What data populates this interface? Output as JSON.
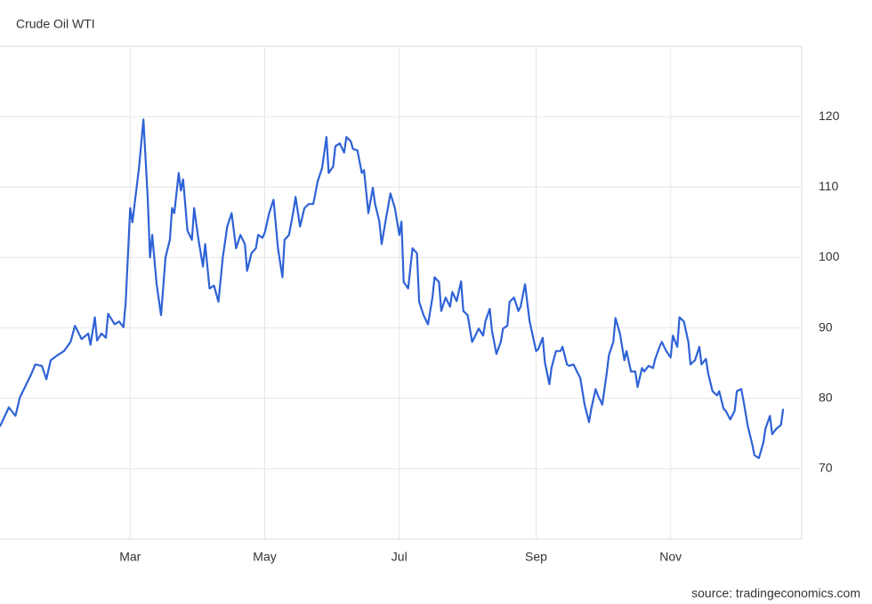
{
  "chart_data": {
    "type": "line",
    "title": "Crude Oil WTI",
    "source": "source: tradingeconomics.com",
    "xlim": [
      0,
      363
    ],
    "xticks": [
      {
        "value": 59,
        "label": "Mar"
      },
      {
        "value": 120,
        "label": "May"
      },
      {
        "value": 181,
        "label": "Jul"
      },
      {
        "value": 243,
        "label": "Sep"
      },
      {
        "value": 304,
        "label": "Nov"
      }
    ],
    "ylim": [
      60,
      130
    ],
    "yticks": [
      70,
      80,
      90,
      100,
      110,
      120
    ],
    "grid": true,
    "series": [
      {
        "color": "#2e62d6",
        "x": [
          0,
          4,
          7,
          9,
          11,
          14,
          16,
          19,
          21,
          23,
          26,
          29,
          32,
          34,
          37,
          40,
          41,
          43,
          44,
          46,
          48,
          49,
          52,
          54,
          56,
          57,
          59,
          60,
          63,
          65,
          67,
          68,
          69,
          71,
          73,
          75,
          77,
          78,
          79,
          81,
          82,
          83,
          85,
          87,
          88,
          90,
          92,
          93,
          95,
          97,
          99,
          101,
          103,
          105,
          107,
          109,
          111,
          112,
          114,
          116,
          117,
          119,
          120,
          122,
          124,
          126,
          128,
          129,
          131,
          133,
          134,
          136,
          138,
          140,
          142,
          144,
          146,
          148,
          149,
          151,
          152,
          154,
          156,
          157,
          159,
          160,
          162,
          164,
          165,
          167,
          169,
          170,
          172,
          173,
          175,
          177,
          179,
          181,
          182,
          183,
          185,
          187,
          189,
          190,
          192,
          194,
          196,
          197,
          199,
          200,
          202,
          204,
          205,
          207,
          209,
          210,
          212,
          214,
          215,
          217,
          219,
          220,
          222,
          223,
          225,
          227,
          228,
          230,
          231,
          233,
          235,
          236,
          238,
          240,
          241,
          243,
          244,
          246,
          247,
          249,
          250,
          252,
          254,
          255,
          257,
          258,
          260,
          262,
          263,
          265,
          267,
          268,
          270,
          271,
          273,
          275,
          276,
          278,
          279,
          281,
          283,
          284,
          286,
          288,
          289,
          291,
          292,
          294,
          296,
          297,
          299,
          300,
          302,
          304,
          305,
          307,
          308,
          310,
          312,
          313,
          315,
          317,
          318,
          320,
          321,
          323,
          325,
          326,
          328,
          329,
          331,
          333,
          334,
          336,
          337,
          339,
          341,
          342,
          344,
          346,
          347,
          349,
          350,
          352,
          354,
          355
        ],
        "values": [
          76.0,
          78.7,
          77.5,
          80.1,
          81.4,
          83.3,
          84.8,
          84.6,
          82.7,
          85.4,
          86.1,
          86.7,
          88.0,
          90.3,
          88.4,
          89.2,
          87.6,
          91.5,
          88.2,
          89.2,
          88.6,
          92.0,
          90.5,
          90.9,
          90.1,
          93.7,
          107.0,
          105.0,
          112.7,
          119.6,
          108.2,
          100.0,
          103.2,
          96.2,
          91.8,
          100.0,
          102.5,
          107.0,
          106.3,
          112.0,
          109.5,
          111.1,
          103.8,
          102.5,
          107.0,
          102.5,
          98.7,
          101.9,
          95.6,
          96.0,
          93.7,
          100.0,
          104.4,
          106.3,
          101.3,
          103.2,
          101.9,
          98.1,
          100.6,
          101.3,
          103.2,
          102.8,
          103.5,
          106.3,
          108.2,
          101.3,
          97.2,
          102.5,
          103.2,
          106.6,
          108.6,
          104.4,
          107.0,
          107.6,
          107.6,
          110.8,
          112.7,
          117.1,
          112.0,
          112.9,
          115.8,
          116.2,
          114.9,
          117.1,
          116.5,
          115.4,
          115.2,
          112.0,
          112.4,
          106.3,
          109.9,
          107.6,
          105.1,
          101.9,
          105.6,
          109.1,
          107.0,
          103.2,
          105.1,
          96.5,
          95.6,
          101.3,
          100.6,
          93.7,
          91.8,
          90.5,
          94.3,
          97.2,
          96.5,
          92.4,
          94.3,
          93.0,
          95.1,
          93.8,
          96.6,
          92.4,
          91.8,
          88.0,
          88.6,
          89.9,
          88.9,
          90.9,
          92.7,
          89.6,
          86.3,
          88.0,
          89.9,
          90.3,
          93.7,
          94.3,
          92.4,
          93.0,
          96.2,
          91.1,
          89.6,
          86.7,
          87.0,
          88.6,
          85.1,
          82.0,
          84.3,
          86.7,
          86.7,
          87.3,
          84.8,
          84.6,
          84.8,
          83.5,
          82.9,
          79.1,
          76.6,
          78.5,
          81.3,
          80.4,
          79.1,
          83.5,
          86.1,
          88.0,
          91.4,
          89.2,
          85.4,
          86.7,
          83.8,
          83.8,
          81.6,
          84.3,
          83.8,
          84.6,
          84.3,
          85.6,
          87.3,
          88.0,
          86.7,
          85.8,
          88.9,
          87.3,
          91.5,
          90.9,
          88.0,
          84.8,
          85.4,
          87.3,
          84.8,
          85.6,
          83.5,
          81.0,
          80.4,
          81.0,
          78.5,
          78.2,
          77.0,
          78.2,
          81.0,
          81.3,
          79.7,
          76.0,
          73.4,
          71.9,
          71.5,
          73.7,
          75.7,
          77.5,
          74.9,
          75.7,
          76.2,
          78.5
        ]
      }
    ]
  }
}
